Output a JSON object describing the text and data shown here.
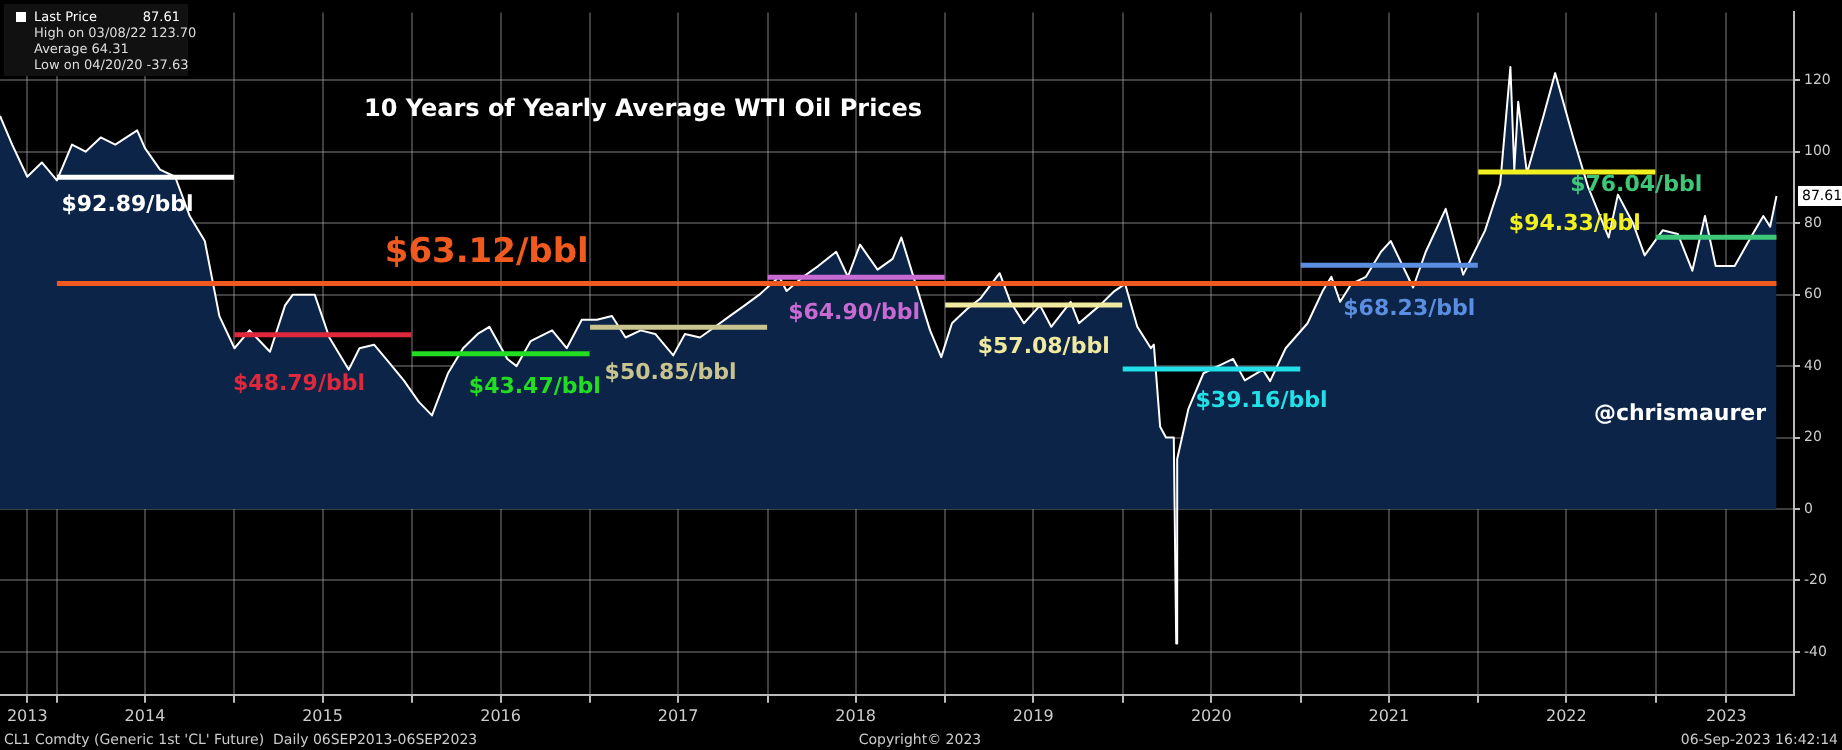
{
  "chart_data": {
    "type": "area",
    "title": "10 Years of Yearly Average WTI Oil Prices",
    "xlim": [
      "2013-09-06",
      "2023-10-12"
    ],
    "ylim": [
      -52,
      139
    ],
    "yticks": [
      -40,
      -20,
      0,
      20,
      40,
      60,
      80,
      100,
      120
    ],
    "xticks": [
      {
        "value": "2013-11-01",
        "label": "2013"
      },
      {
        "value": "2014-01-01",
        "label": null
      },
      {
        "value": "2014-07-01",
        "label": "2014"
      },
      {
        "value": "2015-01-01",
        "label": null
      },
      {
        "value": "2015-07-01",
        "label": "2015"
      },
      {
        "value": "2016-01-01",
        "label": null
      },
      {
        "value": "2016-07-01",
        "label": "2016"
      },
      {
        "value": "2017-01-01",
        "label": null
      },
      {
        "value": "2017-07-01",
        "label": "2017"
      },
      {
        "value": "2018-01-01",
        "label": null
      },
      {
        "value": "2018-07-01",
        "label": "2018"
      },
      {
        "value": "2019-01-01",
        "label": null
      },
      {
        "value": "2019-07-01",
        "label": "2019"
      },
      {
        "value": "2020-01-01",
        "label": null
      },
      {
        "value": "2020-07-01",
        "label": "2020"
      },
      {
        "value": "2021-01-01",
        "label": null
      },
      {
        "value": "2021-07-01",
        "label": "2021"
      },
      {
        "value": "2022-01-01",
        "label": null
      },
      {
        "value": "2022-07-01",
        "label": "2022"
      },
      {
        "value": "2023-01-01",
        "label": null
      },
      {
        "value": "2023-05-26",
        "label": "2023"
      }
    ],
    "grid": true,
    "legend": "top left",
    "series": [
      {
        "name": "Last Price",
        "color": "#ffffff",
        "x": [
          "2013-09-06",
          "2013-10-01",
          "2013-11-01",
          "2013-12-01",
          "2014-01-01",
          "2014-02-01",
          "2014-03-01",
          "2014-04-01",
          "2014-05-01",
          "2014-06-15",
          "2014-07-01",
          "2014-08-01",
          "2014-09-01",
          "2014-10-01",
          "2014-11-01",
          "2014-12-01",
          "2015-01-01",
          "2015-02-01",
          "2015-03-15",
          "2015-04-15",
          "2015-05-01",
          "2015-06-15",
          "2015-07-15",
          "2015-08-24",
          "2015-09-15",
          "2015-10-15",
          "2015-11-15",
          "2015-12-15",
          "2016-01-15",
          "2016-02-11",
          "2016-03-15",
          "2016-04-15",
          "2016-05-15",
          "2016-06-08",
          "2016-07-15",
          "2016-08-03",
          "2016-09-01",
          "2016-10-15",
          "2016-11-14",
          "2016-12-15",
          "2017-01-15",
          "2017-02-15",
          "2017-03-15",
          "2017-04-15",
          "2017-05-15",
          "2017-06-21",
          "2017-07-15",
          "2017-08-15",
          "2017-09-15",
          "2017-10-15",
          "2017-11-15",
          "2017-12-15",
          "2018-01-25",
          "2018-02-09",
          "2018-03-15",
          "2018-04-15",
          "2018-05-22",
          "2018-06-15",
          "2018-07-10",
          "2018-08-15",
          "2018-09-15",
          "2018-10-03",
          "2018-11-15",
          "2018-12-01",
          "2018-12-24",
          "2019-01-15",
          "2019-02-15",
          "2019-03-15",
          "2019-04-23",
          "2019-05-15",
          "2019-06-12",
          "2019-07-15",
          "2019-08-07",
          "2019-09-16",
          "2019-10-03",
          "2019-11-15",
          "2019-12-15",
          "2020-01-06",
          "2020-01-31",
          "2020-02-28",
          "2020-03-05",
          "2020-03-18",
          "2020-03-30",
          "2020-04-15",
          "2020-04-20",
          "2020-04-22",
          "2020-05-15",
          "2020-06-15",
          "2020-07-15",
          "2020-08-15",
          "2020-09-08",
          "2020-10-15",
          "2020-10-30",
          "2020-12-01",
          "2021-01-15",
          "2021-02-15",
          "2021-03-05",
          "2021-03-23",
          "2021-04-15",
          "2021-05-15",
          "2021-06-15",
          "2021-07-05",
          "2021-08-20",
          "2021-09-15",
          "2021-10-26",
          "2021-12-01",
          "2022-01-15",
          "2022-02-15",
          "2022-03-08",
          "2022-03-16",
          "2022-03-24",
          "2022-04-11",
          "2022-05-15",
          "2022-06-08",
          "2022-07-15",
          "2022-08-15",
          "2022-09-26",
          "2022-10-15",
          "2022-11-15",
          "2022-12-09",
          "2023-01-15",
          "2023-02-15",
          "2023-03-17",
          "2023-04-12",
          "2023-05-04",
          "2023-06-12",
          "2023-07-15",
          "2023-08-10",
          "2023-08-24",
          "2023-09-06"
        ],
        "values": [
          110,
          102,
          93,
          97,
          92,
          102,
          100,
          104,
          102,
          106,
          101,
          95,
          93,
          82,
          75,
          54,
          45,
          50,
          44,
          57,
          60,
          60,
          48,
          39,
          45,
          46,
          41,
          36,
          30,
          26.2,
          38,
          45,
          49,
          51,
          42,
          40,
          47,
          50,
          45,
          53,
          53,
          54,
          48,
          50,
          49,
          43,
          49,
          48,
          51,
          54,
          57,
          60,
          65,
          61,
          65,
          68,
          72,
          65,
          74,
          67,
          70,
          76,
          57,
          50,
          42.5,
          52,
          56,
          59,
          66,
          58,
          52,
          57,
          51,
          58,
          52,
          57,
          61,
          63,
          51,
          45,
          46,
          23,
          20,
          20,
          -37.63,
          14,
          28,
          38,
          40,
          42,
          36,
          39,
          35.8,
          45,
          52,
          61,
          65,
          58,
          63,
          65,
          72,
          75,
          62,
          72,
          84,
          65.6,
          78,
          91,
          123.7,
          95,
          114,
          94,
          110,
          122,
          104,
          90,
          76,
          88,
          80,
          71,
          78,
          77,
          66.7,
          82,
          68,
          68,
          76,
          82,
          79,
          87.61
        ]
      },
      {
        "name": "$92.89/bbl",
        "type": "line",
        "color": "#ffffff",
        "x": [
          "2014-01-01",
          "2014-12-31"
        ],
        "values": [
          92.89,
          92.89
        ]
      },
      {
        "name": "$48.79/bbl",
        "type": "line",
        "color": "#e0283c",
        "x": [
          "2015-01-01",
          "2015-12-31"
        ],
        "values": [
          48.79,
          48.79
        ]
      },
      {
        "name": "$43.47/bbl",
        "type": "line",
        "color": "#22dd22",
        "x": [
          "2016-01-01",
          "2016-12-31"
        ],
        "values": [
          43.47,
          43.47
        ]
      },
      {
        "name": "$50.85/bbl",
        "type": "line",
        "color": "#c9c48f",
        "x": [
          "2017-01-01",
          "2017-12-31"
        ],
        "values": [
          50.85,
          50.85
        ]
      },
      {
        "name": "$64.90/bbl",
        "type": "line",
        "color": "#c86ad1",
        "x": [
          "2018-01-01",
          "2018-12-31"
        ],
        "values": [
          64.9,
          64.9
        ]
      },
      {
        "name": "$57.08/bbl",
        "type": "line",
        "color": "#f0e9a0",
        "x": [
          "2019-01-01",
          "2019-12-31"
        ],
        "values": [
          57.08,
          57.08
        ]
      },
      {
        "name": "$39.16/bbl",
        "type": "line",
        "color": "#22e0e8",
        "x": [
          "2020-01-01",
          "2020-12-31"
        ],
        "values": [
          39.16,
          39.16
        ]
      },
      {
        "name": "$68.23/bbl",
        "type": "line",
        "color": "#5b8ee0",
        "x": [
          "2021-01-01",
          "2021-12-31"
        ],
        "values": [
          68.23,
          68.23
        ]
      },
      {
        "name": "$94.33/bbl",
        "type": "line",
        "color": "#f2f01e",
        "x": [
          "2022-01-01",
          "2022-12-31"
        ],
        "values": [
          94.33,
          94.33
        ]
      },
      {
        "name": "$76.04/bbl",
        "type": "line",
        "color": "#3cc878",
        "x": [
          "2023-01-01",
          "2023-09-06"
        ],
        "values": [
          76.04,
          76.04
        ]
      },
      {
        "name": "$63.12/bbl",
        "type": "line",
        "color": "#f05a1e",
        "x": [
          "2014-01-01",
          "2023-09-06"
        ],
        "values": [
          63.12,
          63.12
        ]
      }
    ],
    "annotations": [
      {
        "text": "87.61",
        "x": "2023-09-06",
        "y": 87.61
      },
      "High on 03/08/22 123.70",
      "Average 64.31",
      "Low on 04/20/20 -37.63",
      "@chrismaurer",
      "CL1 Comdty (Generic 1st 'CL' Future)  Daily 06SEP2013-06SEP2023",
      "Copyright© 2023",
      "06-Sep-2023 16:42:14"
    ]
  }
}
